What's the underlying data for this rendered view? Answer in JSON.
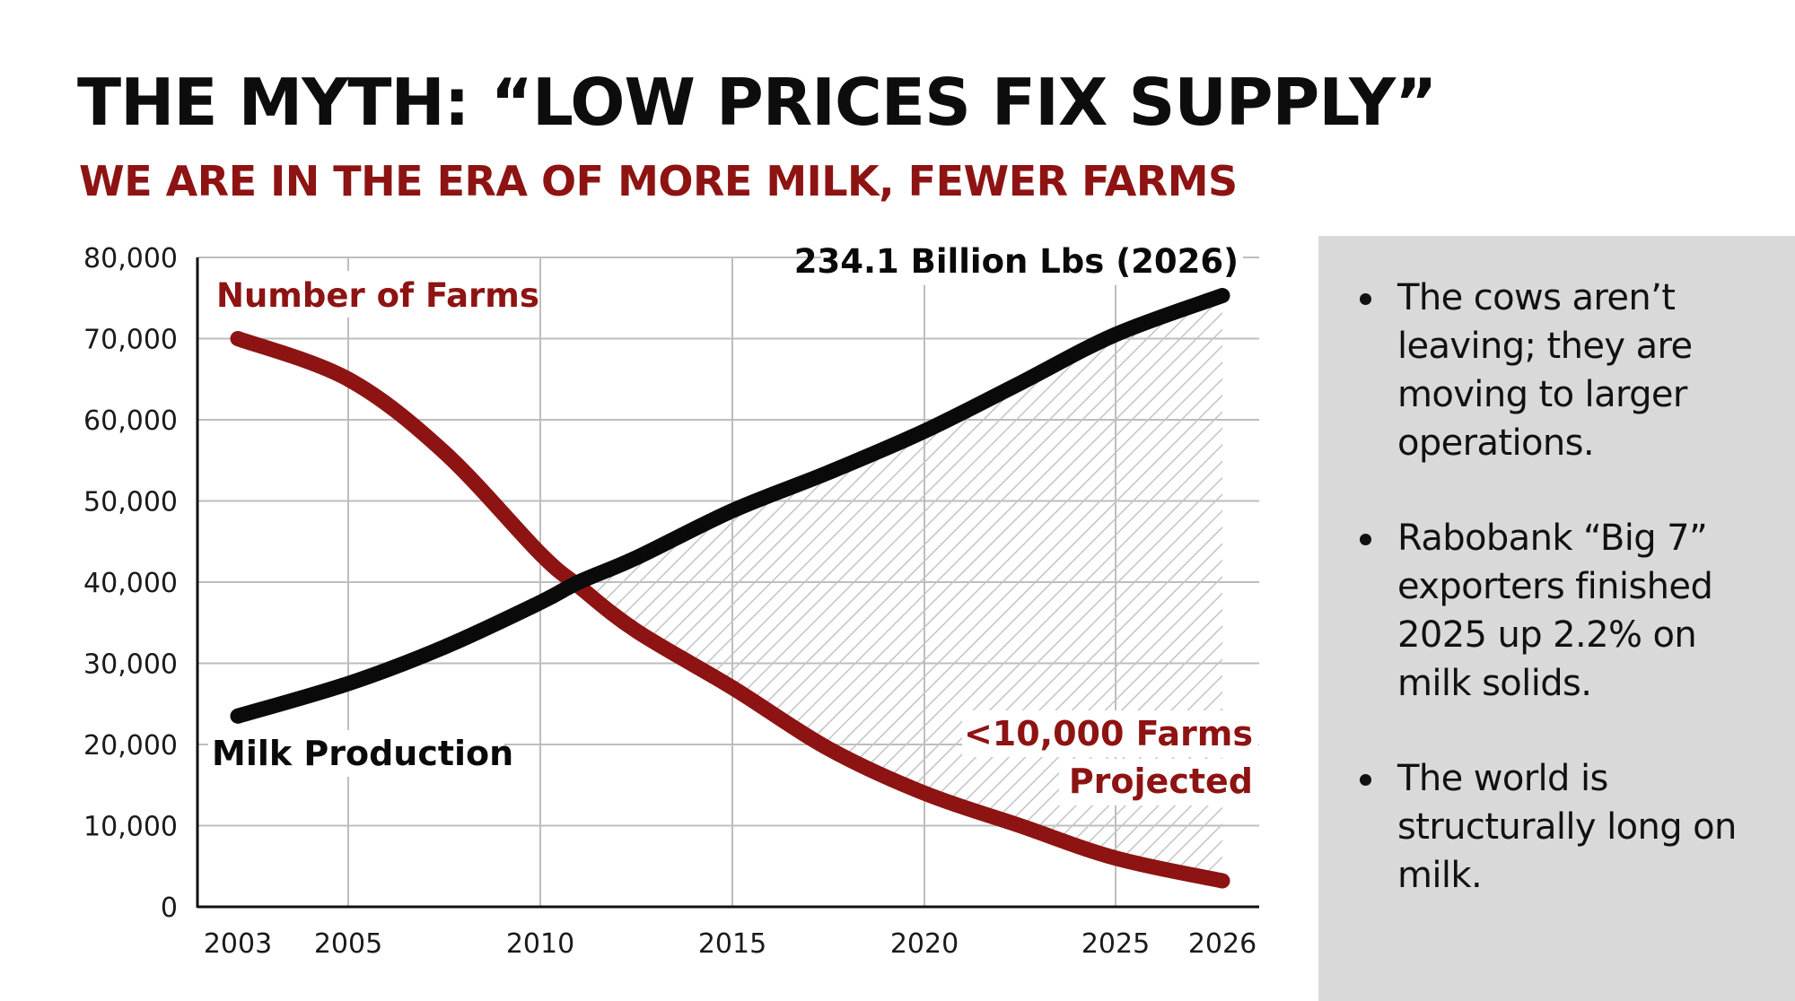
{
  "header": {
    "title": "THE MYTH: “LOW PRICES FIX SUPPLY”",
    "subtitle": "WE ARE IN THE ERA OF MORE MILK, FEWER FARMS"
  },
  "colors": {
    "farms": "#8e1313",
    "milk": "#0a0a0a",
    "panel": "#d9d9d9",
    "grid": "#bdbdbd",
    "hatch": "#c4c4c4"
  },
  "chart_data": {
    "type": "line",
    "title": "",
    "xlabel": "",
    "ylabel": "",
    "ylim": [
      0,
      80000
    ],
    "yticks": [
      0,
      10000,
      20000,
      30000,
      40000,
      50000,
      60000,
      70000,
      80000
    ],
    "ytick_labels": [
      "0",
      "10,000",
      "20,000",
      "30,000",
      "40,000",
      "50,000",
      "60,000",
      "70,000",
      "80,000"
    ],
    "xticks": [
      2003,
      2005,
      2010,
      2015,
      2020,
      2025,
      2026
    ],
    "xtick_labels": [
      "2003",
      "2005",
      "2010",
      "2015",
      "2020",
      "2025",
      "2026"
    ],
    "grid": true,
    "series": [
      {
        "name": "Number of Farms",
        "color": "#8e1313",
        "x": [
          2003,
          2005,
          2007.5,
          2010,
          2011,
          2012.5,
          2015,
          2017.5,
          2020,
          2022.5,
          2025,
          2026
        ],
        "values": [
          70000,
          65000,
          56000,
          43500,
          39500,
          34000,
          27000,
          19500,
          14000,
          10000,
          6000,
          3200
        ]
      },
      {
        "name": "Milk Production",
        "color": "#0a0a0a",
        "x": [
          2003,
          2005,
          2007.5,
          2010,
          2011,
          2012.5,
          2015,
          2017.5,
          2020,
          2022.5,
          2025,
          2026
        ],
        "values": [
          23500,
          27500,
          32000,
          37500,
          40000,
          43000,
          48800,
          53500,
          58600,
          64500,
          70500,
          75300
        ]
      }
    ],
    "shaded_region": "hatched gap between Milk Production and Number of Farms after crossover (~2011 to 2026)",
    "annotations": [
      {
        "text": "Number of Farms",
        "series": "Number of Farms",
        "position": "top-left"
      },
      {
        "text": "Milk Production",
        "series": "Milk Production",
        "position": "bottom-left"
      },
      {
        "text": "234.1 Billion Lbs (2026)",
        "series": "Milk Production",
        "position": "top-right"
      },
      {
        "text": "<10,000 Farms",
        "series": "Number of Farms",
        "position": "bottom-right"
      },
      {
        "text": "Projected",
        "series": "Number of Farms",
        "position": "bottom-right"
      }
    ]
  },
  "panel": {
    "bullets": [
      "The cows aren’t leaving; they are moving to larger operations.",
      "Rabobank “Big 7” exporters finished 2025 up 2.2% on milk solids.",
      "The world is structurally long on milk."
    ]
  }
}
